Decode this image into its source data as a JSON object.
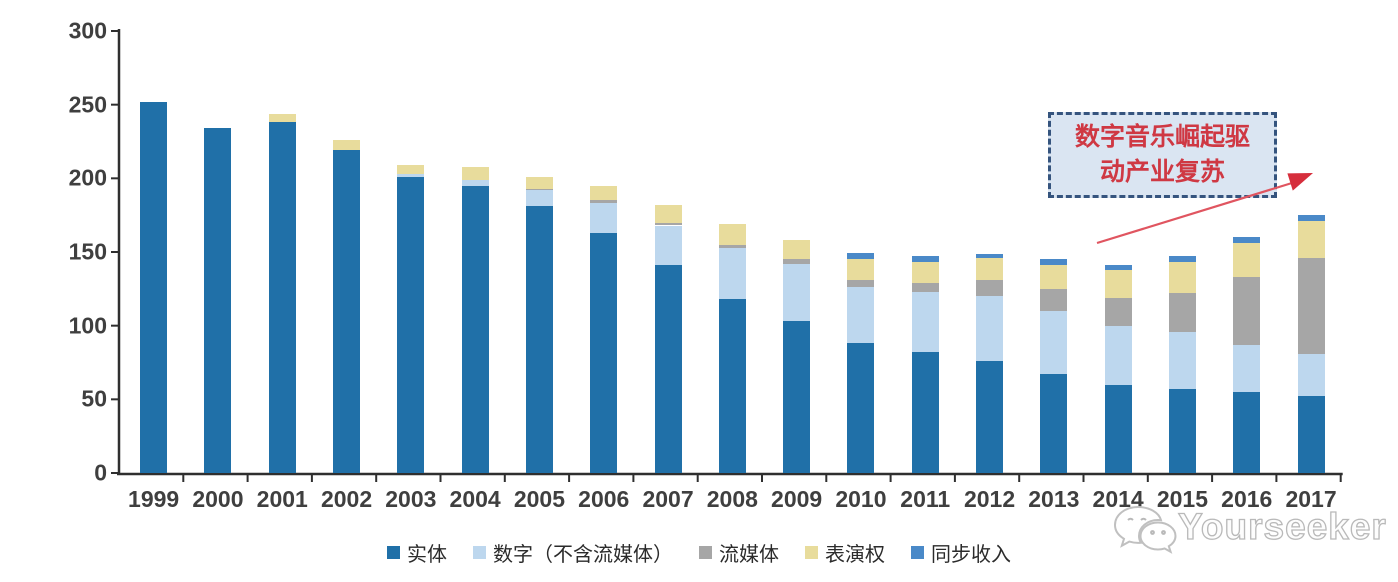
{
  "page": {
    "background": "#ffffff"
  },
  "axis": {
    "color": "#2f2f2f",
    "label_color": "#3f3f3f"
  },
  "annotation": {
    "line1": "数字音乐崛起驱",
    "line2": "动产业复苏",
    "text_color": "#cf3843",
    "border_color": "#35547e",
    "fill_color": "#dae5f2",
    "arrow_color": "#dd3944"
  },
  "watermark": {
    "text": "Yourseeker",
    "logo": "wechat-logo",
    "color": "#bdbdbd"
  },
  "chart_data": {
    "type": "bar",
    "stacked": true,
    "title": "",
    "xlabel": "",
    "ylabel": "",
    "ylim": [
      0,
      300
    ],
    "yticks": [
      0,
      50,
      100,
      150,
      200,
      250,
      300
    ],
    "grid": false,
    "legend_position": "bottom",
    "categories": [
      "1999",
      "2000",
      "2001",
      "2002",
      "2003",
      "2004",
      "2005",
      "2006",
      "2007",
      "2008",
      "2009",
      "2010",
      "2011",
      "2012",
      "2013",
      "2014",
      "2015",
      "2016",
      "2017"
    ],
    "series": [
      {
        "name": "实体",
        "color": "#2070a8",
        "values": [
          252,
          234,
          238,
          219,
          201,
          195,
          181,
          163,
          141,
          118,
          103,
          88,
          82,
          76,
          67,
          60,
          57,
          55,
          52
        ]
      },
      {
        "name": "数字（不含流媒体）",
        "color": "#bdd7ee",
        "values": [
          0,
          0,
          0,
          0,
          2,
          4,
          11,
          20,
          27,
          35,
          39,
          38,
          41,
          44,
          43,
          40,
          39,
          32,
          29
        ]
      },
      {
        "name": "流媒体",
        "color": "#a6a6a6",
        "values": [
          0,
          0,
          0,
          0,
          0,
          0,
          1,
          2,
          2,
          2,
          3,
          5,
          6,
          11,
          15,
          19,
          26,
          46,
          65
        ]
      },
      {
        "name": "表演权",
        "color": "#e8dc9c",
        "values": [
          0,
          0,
          6,
          7,
          6,
          9,
          8,
          10,
          12,
          14,
          13,
          14,
          14,
          15,
          16,
          19,
          21,
          23,
          25
        ]
      },
      {
        "name": "同步收入",
        "color": "#4a89c8",
        "values": [
          0,
          0,
          0,
          0,
          0,
          0,
          0,
          0,
          0,
          0,
          0,
          4,
          4,
          3,
          4,
          3,
          4,
          4,
          4
        ]
      }
    ]
  }
}
